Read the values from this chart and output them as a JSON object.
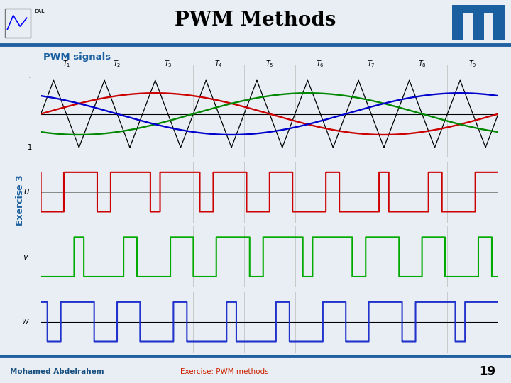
{
  "title": "PWM Methods",
  "subtitle": "PWM signals",
  "exercise_label": "Exercise 3",
  "author": "Mohamed Abdelrahem",
  "footer_text": "Exercise: PWM methods",
  "page_number": "19",
  "bg_color": "#e8eef4",
  "header_bg": "#ffffff",
  "header_border_color": "#2060a0",
  "footer_border_color": "#2060a0",
  "subtitle_color": "#1a5fa0",
  "exercise_color": "#1a5fa0",
  "author_color": "#1a5080",
  "footer_exercise_color": "#cc2200",
  "n_periods": 9,
  "modulation_amp": 0.62,
  "signal_colors": {
    "carrier": "#000000",
    "ref_u": "#cc0000",
    "ref_v": "#008800",
    "ref_w": "#0000cc",
    "pwm_u": "#cc0000",
    "pwm_v": "#00aa00",
    "pwm_w": "#2233cc"
  }
}
